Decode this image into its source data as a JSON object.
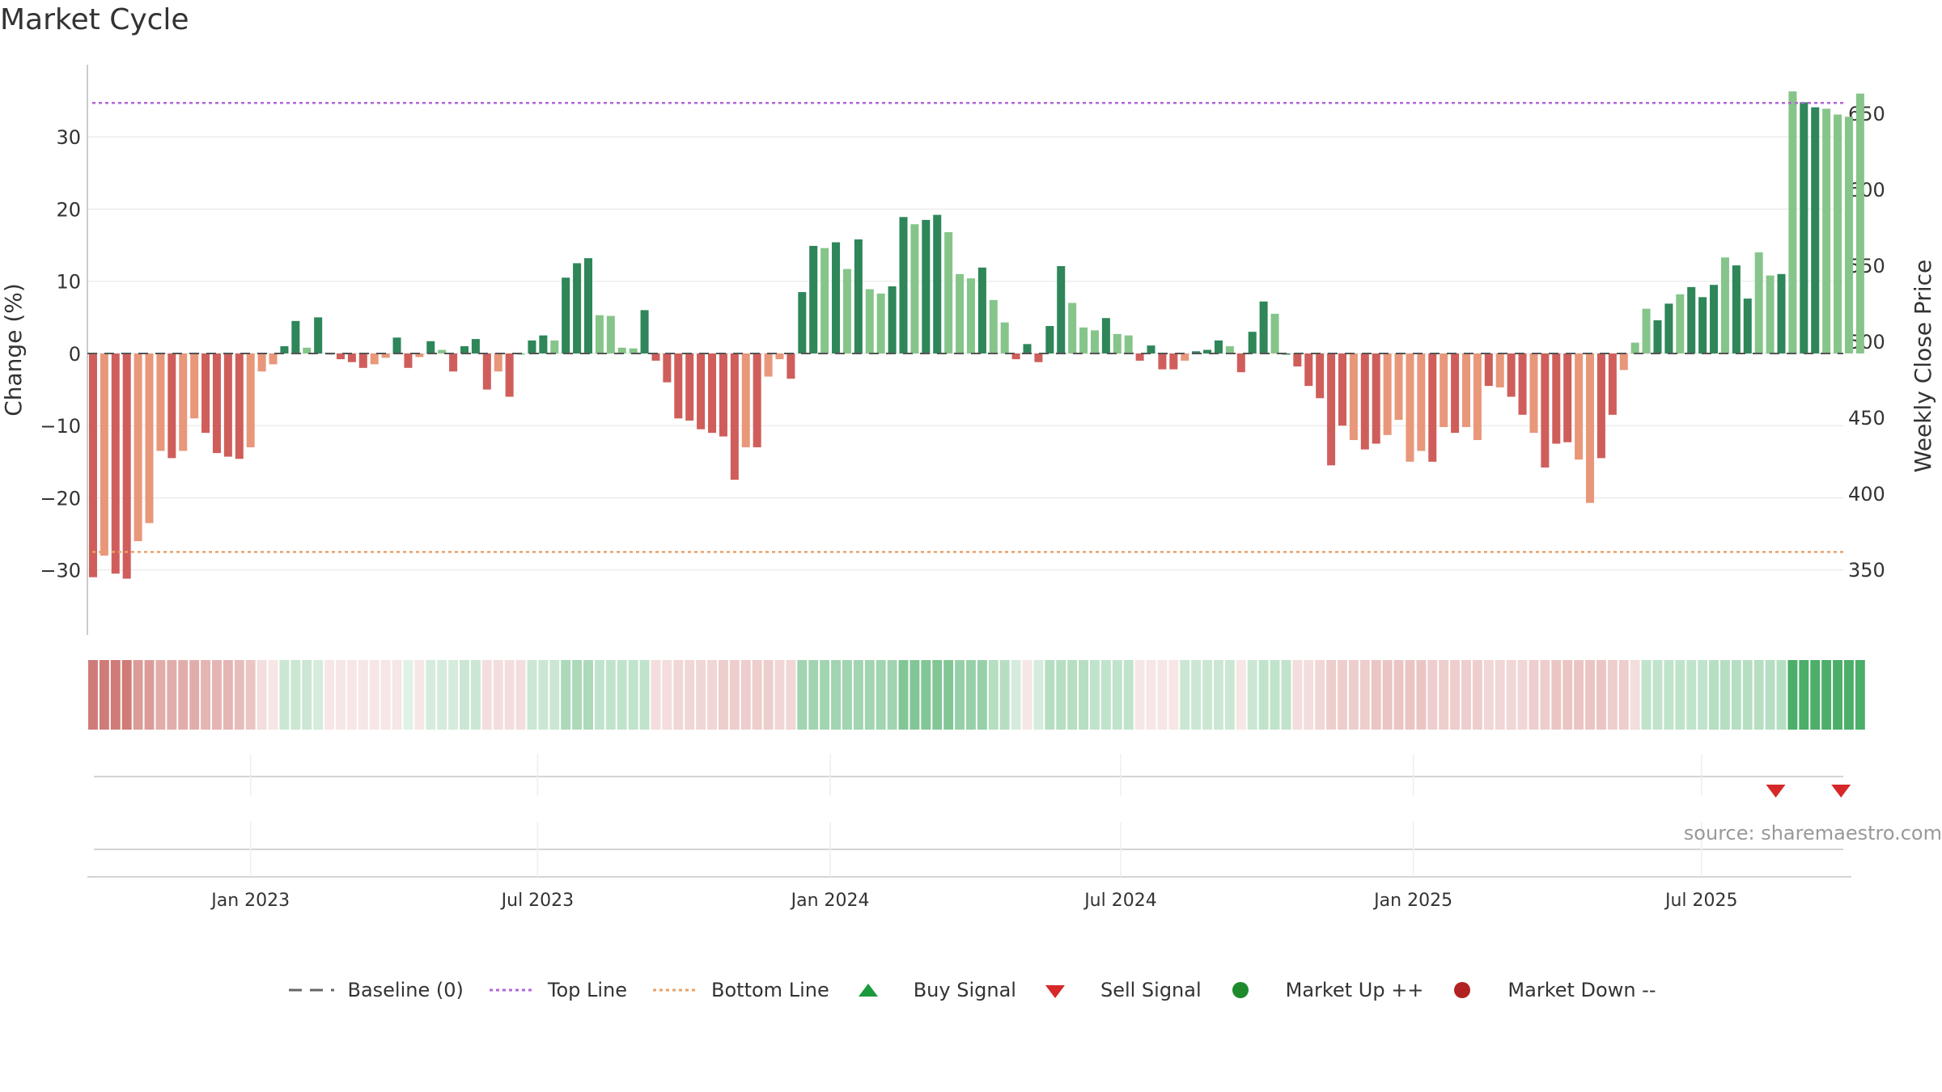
{
  "title": "Market Cycle",
  "source": "source: sharemaestro.com",
  "legend": {
    "baseline": "Baseline (0)",
    "top_line": "Top Line",
    "bottom_line": "Bottom Line",
    "buy_signal": "Buy Signal",
    "sell_signal": "Sell Signal",
    "market_up": "Market Up ++",
    "market_down": "Market Down --"
  },
  "colors": {
    "pos_strong": "#2e8659",
    "pos_light": "#86c58a",
    "neg_strong": "#cf5e5b",
    "neg_light": "#e8977b",
    "top_line": "#b266d6",
    "bottom_line": "#e8a26a",
    "sell": "#d62828",
    "buy": "#1a9a3a",
    "market_up": "#1e8a2e",
    "market_down": "#b22222"
  },
  "chart_data": {
    "type": "bar",
    "ylabel": "Change (%)",
    "y2label": "Weekly Close Price",
    "ylim": [
      -39,
      40
    ],
    "y2lim": [
      307,
      682
    ],
    "yticks": [
      30,
      20,
      10,
      0,
      -10,
      -20,
      -30
    ],
    "y2ticks": [
      650,
      600,
      550,
      500,
      450,
      400,
      350
    ],
    "top_line": 34.7,
    "bottom_line": -27.5,
    "x_ticks": [
      {
        "label": "Jan 2023",
        "week": 14.5
      },
      {
        "label": "Jul 2023",
        "week": 40
      },
      {
        "label": "Jan 2024",
        "week": 66
      },
      {
        "label": "Jul 2024",
        "week": 91.8
      },
      {
        "label": "Jan 2025",
        "week": 117.8
      },
      {
        "label": "Jul 2025",
        "week": 143.4
      }
    ],
    "weeks": 156,
    "values": [
      -31,
      -28,
      -30.5,
      -31.2,
      -26,
      -23.5,
      -13.5,
      -14.5,
      -13.5,
      -9,
      -11,
      -13.8,
      -14.3,
      -14.6,
      -13,
      -2.5,
      -1.5,
      1,
      4.5,
      0.8,
      5,
      0,
      -0.8,
      -1.2,
      -2,
      -1.5,
      -0.6,
      2.2,
      -2,
      -0.5,
      1.7,
      0.5,
      -2.5,
      1,
      2,
      -5,
      -2.5,
      -6,
      0,
      1.8,
      2.5,
      1.8,
      10.5,
      12.5,
      13.2,
      5.3,
      5.2,
      0.8,
      0.7,
      6,
      -1,
      -4,
      -9,
      -9.3,
      -10.5,
      -11,
      -11.5,
      -17.5,
      -13,
      -13,
      -3.2,
      -0.8,
      -3.5,
      8.5,
      14.9,
      14.6,
      15.4,
      11.7,
      15.8,
      8.9,
      8.3,
      9.3,
      18.9,
      17.9,
      18.5,
      19.2,
      16.8,
      11,
      10.4,
      11.9,
      7.4,
      4.3,
      -0.8,
      1.3,
      -1.2,
      3.8,
      12.1,
      7,
      3.6,
      3.2,
      4.9,
      2.7,
      2.5,
      -1,
      1.1,
      -2.2,
      -2.2,
      -1,
      0.3,
      0.5,
      1.8,
      1,
      -2.6,
      3,
      7.2,
      5.5,
      0,
      -1.8,
      -4.5,
      -6.2,
      -15.5,
      -10,
      -12,
      -13.3,
      -12.5,
      -11.3,
      -9.2,
      -15,
      -13.5,
      -15,
      -10.2,
      -11,
      -10.2,
      -12,
      -4.5,
      -4.7,
      -6,
      -8.5,
      -11,
      -15.8,
      -12.5,
      -12.3,
      -14.7,
      -20.7,
      -14.5,
      -8.5,
      -2.3,
      1.5,
      6.2,
      4.6,
      6.9,
      8.2,
      9.2,
      7.8,
      9.5,
      13.3,
      12.2,
      7.6,
      14,
      10.8,
      11,
      36.3,
      34.8,
      34.1,
      33.9,
      33.1,
      32.8,
      36
    ],
    "shades": [
      1,
      0,
      1,
      1,
      0,
      0,
      0,
      1,
      0,
      0,
      1,
      1,
      1,
      1,
      0,
      0,
      0,
      1,
      1,
      0,
      1,
      0,
      1,
      1,
      1,
      0,
      0,
      1,
      1,
      0,
      1,
      0,
      1,
      1,
      1,
      1,
      0,
      1,
      0,
      1,
      1,
      0,
      1,
      1,
      1,
      0,
      0,
      0,
      0,
      1,
      1,
      1,
      1,
      1,
      1,
      1,
      1,
      1,
      0,
      1,
      0,
      0,
      1,
      1,
      1,
      0,
      1,
      0,
      1,
      0,
      0,
      1,
      1,
      0,
      1,
      1,
      0,
      0,
      0,
      1,
      0,
      0,
      1,
      1,
      1,
      1,
      1,
      0,
      0,
      0,
      1,
      0,
      0,
      1,
      1,
      1,
      1,
      0,
      1,
      1,
      1,
      0,
      1,
      1,
      1,
      0,
      1,
      1,
      1,
      1,
      1,
      1,
      0,
      1,
      1,
      0,
      0,
      0,
      0,
      1,
      0,
      1,
      0,
      0,
      1,
      0,
      1,
      1,
      0,
      1,
      1,
      1,
      0,
      0,
      1,
      1,
      0,
      0,
      0,
      1,
      1,
      0,
      1,
      1,
      1,
      0,
      1,
      1,
      0,
      0,
      1,
      0,
      1,
      1,
      0,
      0,
      0,
      0,
      0,
      0,
      1
    ],
    "heat_strip": [
      -0.8,
      -0.8,
      -0.8,
      -0.8,
      -0.6,
      -0.6,
      -0.5,
      -0.5,
      -0.5,
      -0.5,
      -0.45,
      -0.45,
      -0.45,
      -0.4,
      -0.35,
      -0.2,
      -0.15,
      0.25,
      0.25,
      0.25,
      0.2,
      -0.15,
      -0.15,
      -0.15,
      -0.15,
      -0.15,
      -0.15,
      -0.15,
      0.15,
      -0.15,
      0.2,
      0.2,
      0.2,
      0.25,
      0.25,
      -0.2,
      -0.2,
      -0.2,
      -0.2,
      0.25,
      0.25,
      0.25,
      0.4,
      0.4,
      0.4,
      0.3,
      0.3,
      0.3,
      0.3,
      0.3,
      -0.2,
      -0.2,
      -0.25,
      -0.25,
      -0.25,
      -0.25,
      -0.3,
      -0.3,
      -0.3,
      -0.3,
      -0.3,
      -0.25,
      -0.25,
      0.45,
      0.45,
      0.45,
      0.45,
      0.45,
      0.45,
      0.45,
      0.45,
      0.45,
      0.6,
      0.6,
      0.6,
      0.6,
      0.6,
      0.5,
      0.5,
      0.5,
      0.35,
      0.35,
      0.2,
      -0.15,
      0.2,
      0.35,
      0.35,
      0.35,
      0.35,
      0.3,
      0.3,
      0.3,
      0.3,
      -0.15,
      -0.15,
      -0.15,
      -0.15,
      0.25,
      0.25,
      0.25,
      0.25,
      0.25,
      -0.15,
      0.25,
      0.3,
      0.3,
      0.3,
      -0.2,
      -0.2,
      -0.25,
      -0.3,
      -0.3,
      -0.3,
      -0.3,
      -0.35,
      -0.35,
      -0.35,
      -0.35,
      -0.35,
      -0.3,
      -0.3,
      -0.3,
      -0.3,
      -0.3,
      -0.25,
      -0.25,
      -0.25,
      -0.25,
      -0.3,
      -0.3,
      -0.35,
      -0.35,
      -0.35,
      -0.35,
      -0.35,
      -0.3,
      -0.3,
      -0.2,
      0.3,
      0.3,
      0.3,
      0.3,
      0.3,
      0.3,
      0.35,
      0.35,
      0.35,
      0.35,
      0.35,
      0.35,
      0.35,
      0.85,
      0.85,
      0.85,
      0.85,
      0.85,
      0.85,
      0.85
    ],
    "sell_signals": [
      150,
      155.8
    ]
  }
}
